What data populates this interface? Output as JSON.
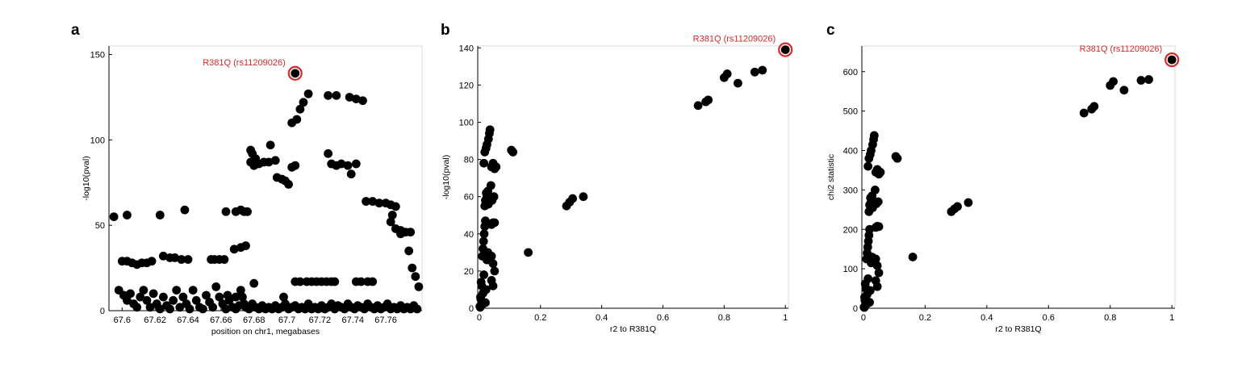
{
  "chart_data": [
    {
      "panel": "a",
      "type": "scatter",
      "xlabel": "position on chr1, megabases",
      "ylabel": "-log10(pval)",
      "xlim": [
        67.592,
        67.782
      ],
      "ylim": [
        0,
        155
      ],
      "xticks": [
        67.6,
        67.62,
        67.64,
        67.66,
        67.68,
        67.7,
        67.72,
        67.74,
        67.76
      ],
      "xtick_labels": [
        "67.6",
        "67.62",
        "67.64",
        "67.66",
        "67.68",
        "67.7",
        "67.72",
        "67.74",
        "67.76"
      ],
      "yticks": [
        0,
        50,
        100,
        150
      ],
      "ytick_labels": [
        "0",
        "50",
        "100",
        "150"
      ],
      "grid": false,
      "annotation": {
        "text": "R381Q (rs11209026)",
        "x": 67.705,
        "y": 139,
        "color": "#d62a2a"
      },
      "points": [
        [
          67.595,
          55
        ],
        [
          67.6,
          29
        ],
        [
          67.603,
          29
        ],
        [
          67.606,
          28
        ],
        [
          67.609,
          27
        ],
        [
          67.612,
          28
        ],
        [
          67.615,
          28
        ],
        [
          67.618,
          29
        ],
        [
          67.603,
          56
        ],
        [
          67.623,
          56
        ],
        [
          67.638,
          59
        ],
        [
          67.625,
          32
        ],
        [
          67.629,
          31
        ],
        [
          67.632,
          31
        ],
        [
          67.636,
          30
        ],
        [
          67.64,
          30
        ],
        [
          67.654,
          30
        ],
        [
          67.656,
          30
        ],
        [
          67.659,
          30
        ],
        [
          67.662,
          30
        ],
        [
          67.663,
          58
        ],
        [
          67.669,
          58
        ],
        [
          67.672,
          59
        ],
        [
          67.674,
          58
        ],
        [
          67.676,
          58
        ],
        [
          67.668,
          36
        ],
        [
          67.672,
          37
        ],
        [
          67.675,
          38
        ],
        [
          67.664,
          9
        ],
        [
          67.669,
          8
        ],
        [
          67.672,
          12
        ],
        [
          67.674,
          4
        ],
        [
          67.678,
          94
        ],
        [
          67.679,
          92
        ],
        [
          67.681,
          89
        ],
        [
          67.678,
          87
        ],
        [
          67.68,
          85
        ],
        [
          67.683,
          86
        ],
        [
          67.686,
          87
        ],
        [
          67.689,
          87
        ],
        [
          67.69,
          97
        ],
        [
          67.693,
          88
        ],
        [
          67.694,
          78
        ],
        [
          67.697,
          77
        ],
        [
          67.699,
          76
        ],
        [
          67.701,
          74
        ],
        [
          67.703,
          84
        ],
        [
          67.705,
          85
        ],
        [
          67.703,
          110
        ],
        [
          67.706,
          112
        ],
        [
          67.708,
          118
        ],
        [
          67.71,
          122
        ],
        [
          67.713,
          127
        ],
        [
          67.725,
          92
        ],
        [
          67.727,
          86
        ],
        [
          67.73,
          85
        ],
        [
          67.733,
          86
        ],
        [
          67.737,
          85
        ],
        [
          67.739,
          80
        ],
        [
          67.742,
          86
        ],
        [
          67.748,
          64
        ],
        [
          67.752,
          64
        ],
        [
          67.756,
          63
        ],
        [
          67.76,
          63
        ],
        [
          67.763,
          62
        ],
        [
          67.764,
          56
        ],
        [
          67.766,
          61
        ],
        [
          67.763,
          52
        ],
        [
          67.766,
          48
        ],
        [
          67.769,
          47
        ],
        [
          67.772,
          46
        ],
        [
          67.775,
          46
        ],
        [
          67.725,
          126
        ],
        [
          67.73,
          126
        ],
        [
          67.738,
          125
        ],
        [
          67.742,
          124
        ],
        [
          67.746,
          123
        ],
        [
          67.705,
          17
        ],
        [
          67.708,
          17
        ],
        [
          67.712,
          17
        ],
        [
          67.715,
          17
        ],
        [
          67.718,
          17
        ],
        [
          67.721,
          17
        ],
        [
          67.724,
          17
        ],
        [
          67.727,
          17
        ],
        [
          67.729,
          17
        ],
        [
          67.742,
          17
        ],
        [
          67.745,
          17
        ],
        [
          67.749,
          17
        ],
        [
          67.752,
          17
        ],
        [
          67.769,
          45
        ],
        [
          67.774,
          35
        ],
        [
          67.776,
          25
        ],
        [
          67.778,
          20
        ],
        [
          67.78,
          14
        ],
        [
          67.598,
          12
        ],
        [
          67.601,
          9
        ],
        [
          67.603,
          6
        ],
        [
          67.605,
          10
        ],
        [
          67.607,
          4
        ],
        [
          67.609,
          2
        ],
        [
          67.611,
          8
        ],
        [
          67.613,
          12
        ],
        [
          67.615,
          6
        ],
        [
          67.617,
          2
        ],
        [
          67.619,
          10
        ],
        [
          67.621,
          4
        ],
        [
          67.623,
          1
        ],
        [
          67.625,
          8
        ],
        [
          67.627,
          3
        ],
        [
          67.629,
          1
        ],
        [
          67.631,
          6
        ],
        [
          67.633,
          12
        ],
        [
          67.635,
          2
        ],
        [
          67.637,
          8
        ],
        [
          67.639,
          4
        ],
        [
          67.641,
          1
        ],
        [
          67.643,
          12
        ],
        [
          67.645,
          6
        ],
        [
          67.647,
          2
        ],
        [
          67.649,
          1
        ],
        [
          67.651,
          9
        ],
        [
          67.653,
          5
        ],
        [
          67.655,
          2
        ],
        [
          67.657,
          14
        ],
        [
          67.659,
          8
        ],
        [
          67.661,
          4
        ],
        [
          67.663,
          1
        ],
        [
          67.665,
          6
        ],
        [
          67.667,
          2
        ],
        [
          67.669,
          1
        ],
        [
          67.671,
          3
        ],
        [
          67.673,
          8
        ],
        [
          67.675,
          2
        ],
        [
          67.677,
          1
        ],
        [
          67.679,
          4
        ],
        [
          67.681,
          2
        ],
        [
          67.683,
          1
        ],
        [
          67.685,
          3
        ],
        [
          67.687,
          1
        ],
        [
          67.689,
          2
        ],
        [
          67.691,
          1
        ],
        [
          67.693,
          3
        ],
        [
          67.695,
          1
        ],
        [
          67.697,
          2
        ],
        [
          67.699,
          4
        ],
        [
          67.701,
          1
        ],
        [
          67.703,
          2
        ],
        [
          67.705,
          3
        ],
        [
          67.707,
          1
        ],
        [
          67.709,
          2
        ],
        [
          67.711,
          1
        ],
        [
          67.713,
          4
        ],
        [
          67.715,
          1
        ],
        [
          67.717,
          2
        ],
        [
          67.719,
          1
        ],
        [
          67.721,
          3
        ],
        [
          67.723,
          1
        ],
        [
          67.725,
          2
        ],
        [
          67.727,
          4
        ],
        [
          67.729,
          1
        ],
        [
          67.731,
          3
        ],
        [
          67.733,
          2
        ],
        [
          67.735,
          1
        ],
        [
          67.737,
          4
        ],
        [
          67.739,
          2
        ],
        [
          67.741,
          1
        ],
        [
          67.743,
          3
        ],
        [
          67.745,
          2
        ],
        [
          67.747,
          1
        ],
        [
          67.749,
          4
        ],
        [
          67.751,
          2
        ],
        [
          67.753,
          1
        ],
        [
          67.755,
          3
        ],
        [
          67.757,
          1
        ],
        [
          67.759,
          2
        ],
        [
          67.761,
          4
        ],
        [
          67.763,
          1
        ],
        [
          67.765,
          2
        ],
        [
          67.767,
          1
        ],
        [
          67.769,
          3
        ],
        [
          67.771,
          1
        ],
        [
          67.773,
          2
        ],
        [
          67.775,
          1
        ],
        [
          67.777,
          3
        ],
        [
          67.779,
          1
        ],
        [
          67.68,
          16
        ],
        [
          67.698,
          8
        ]
      ],
      "highlight_point": [
        67.705,
        139
      ]
    },
    {
      "panel": "b",
      "type": "scatter",
      "xlabel": "r2 to R381Q",
      "ylabel": "-log10(pval)",
      "xlim": [
        -0.005,
        1.01
      ],
      "ylim": [
        0,
        141
      ],
      "xticks": [
        0,
        0.2,
        0.4,
        0.6,
        0.8,
        1
      ],
      "xtick_labels": [
        "0",
        "0.2",
        "0.4",
        "0.6",
        "0.8",
        "1"
      ],
      "yticks": [
        0,
        20,
        40,
        60,
        80,
        100,
        120,
        140
      ],
      "ytick_labels": [
        "0",
        "20",
        "40",
        "60",
        "80",
        "100",
        "120",
        "140"
      ],
      "grid": false,
      "annotation": {
        "text": "R381Q (rs11209026)",
        "x": 1.0,
        "y": 139,
        "color": "#d62a2a"
      },
      "points": [
        [
          0.005,
          5
        ],
        [
          0.008,
          12
        ],
        [
          0.01,
          2
        ],
        [
          0.012,
          8
        ],
        [
          0.015,
          18
        ],
        [
          0.02,
          3
        ],
        [
          0.022,
          10
        ],
        [
          0.002,
          1
        ],
        [
          0.004,
          6
        ],
        [
          0.006,
          14
        ],
        [
          0.003,
          0.5
        ],
        [
          0.01,
          28
        ],
        [
          0.012,
          32
        ],
        [
          0.014,
          36
        ],
        [
          0.016,
          40
        ],
        [
          0.018,
          44
        ],
        [
          0.02,
          47
        ],
        [
          0.025,
          26
        ],
        [
          0.028,
          30
        ],
        [
          0.018,
          55
        ],
        [
          0.02,
          58
        ],
        [
          0.023,
          62
        ],
        [
          0.025,
          60
        ],
        [
          0.03,
          56
        ],
        [
          0.028,
          63
        ],
        [
          0.015,
          78
        ],
        [
          0.018,
          84
        ],
        [
          0.022,
          86
        ],
        [
          0.025,
          88
        ],
        [
          0.03,
          91
        ],
        [
          0.033,
          94
        ],
        [
          0.035,
          96
        ],
        [
          0.04,
          76
        ],
        [
          0.045,
          78
        ],
        [
          0.05,
          75
        ],
        [
          0.055,
          76
        ],
        [
          0.038,
          66
        ],
        [
          0.042,
          58
        ],
        [
          0.048,
          60
        ],
        [
          0.04,
          45
        ],
        [
          0.045,
          46
        ],
        [
          0.05,
          46
        ],
        [
          0.04,
          28
        ],
        [
          0.045,
          24
        ],
        [
          0.05,
          20
        ],
        [
          0.04,
          15
        ],
        [
          0.045,
          12
        ],
        [
          0.105,
          85
        ],
        [
          0.11,
          84
        ],
        [
          0.16,
          30
        ],
        [
          0.285,
          55
        ],
        [
          0.295,
          57
        ],
        [
          0.305,
          59
        ],
        [
          0.34,
          60
        ],
        [
          0.715,
          109
        ],
        [
          0.74,
          111
        ],
        [
          0.748,
          112
        ],
        [
          0.8,
          124
        ],
        [
          0.81,
          126
        ],
        [
          0.845,
          121
        ],
        [
          0.9,
          127
        ],
        [
          0.925,
          128
        ]
      ],
      "highlight_point": [
        1.0,
        139
      ]
    },
    {
      "panel": "c",
      "type": "scatter",
      "xlabel": "r2 to R381Q",
      "ylabel": "chi2 statistic",
      "xlim": [
        -0.005,
        1.01
      ],
      "ylim": [
        0,
        665
      ],
      "xticks": [
        0,
        0.2,
        0.4,
        0.6,
        0.8,
        1
      ],
      "xtick_labels": [
        "0",
        "0.2",
        "0.4",
        "0.6",
        "0.8",
        "1"
      ],
      "yticks": [
        0,
        100,
        200,
        300,
        400,
        500,
        600
      ],
      "ytick_labels": [
        "0",
        "100",
        "200",
        "300",
        "400",
        "500",
        "600"
      ],
      "grid": false,
      "annotation": {
        "text": "R381Q (rs11209026)",
        "x": 1.0,
        "y": 630,
        "color": "#d62a2a"
      },
      "points": [
        [
          0.005,
          20
        ],
        [
          0.008,
          50
        ],
        [
          0.01,
          10
        ],
        [
          0.012,
          35
        ],
        [
          0.015,
          75
        ],
        [
          0.02,
          15
        ],
        [
          0.022,
          45
        ],
        [
          0.002,
          3
        ],
        [
          0.004,
          28
        ],
        [
          0.006,
          62
        ],
        [
          0.003,
          2
        ],
        [
          0.01,
          125
        ],
        [
          0.012,
          140
        ],
        [
          0.014,
          155
        ],
        [
          0.016,
          170
        ],
        [
          0.018,
          185
        ],
        [
          0.02,
          200
        ],
        [
          0.025,
          115
        ],
        [
          0.028,
          130
        ],
        [
          0.018,
          245
        ],
        [
          0.02,
          262
        ],
        [
          0.023,
          280
        ],
        [
          0.025,
          270
        ],
        [
          0.03,
          255
        ],
        [
          0.028,
          285
        ],
        [
          0.015,
          360
        ],
        [
          0.018,
          380
        ],
        [
          0.022,
          390
        ],
        [
          0.025,
          400
        ],
        [
          0.03,
          415
        ],
        [
          0.033,
          428
        ],
        [
          0.035,
          438
        ],
        [
          0.04,
          345
        ],
        [
          0.045,
          352
        ],
        [
          0.05,
          340
        ],
        [
          0.055,
          345
        ],
        [
          0.038,
          300
        ],
        [
          0.042,
          265
        ],
        [
          0.048,
          270
        ],
        [
          0.04,
          205
        ],
        [
          0.045,
          208
        ],
        [
          0.05,
          207
        ],
        [
          0.04,
          125
        ],
        [
          0.045,
          108
        ],
        [
          0.05,
          90
        ],
        [
          0.04,
          70
        ],
        [
          0.045,
          55
        ],
        [
          0.105,
          385
        ],
        [
          0.11,
          380
        ],
        [
          0.16,
          130
        ],
        [
          0.285,
          245
        ],
        [
          0.295,
          252
        ],
        [
          0.305,
          258
        ],
        [
          0.34,
          268
        ],
        [
          0.715,
          495
        ],
        [
          0.74,
          505
        ],
        [
          0.748,
          512
        ],
        [
          0.8,
          565
        ],
        [
          0.81,
          575
        ],
        [
          0.845,
          553
        ],
        [
          0.9,
          578
        ],
        [
          0.925,
          580
        ]
      ],
      "highlight_point": [
        1.0,
        630
      ]
    }
  ],
  "figure": {
    "panel_letters": [
      "a",
      "b",
      "c"
    ],
    "colors": {
      "highlight": "#d62a2a",
      "points": "#000000"
    }
  }
}
